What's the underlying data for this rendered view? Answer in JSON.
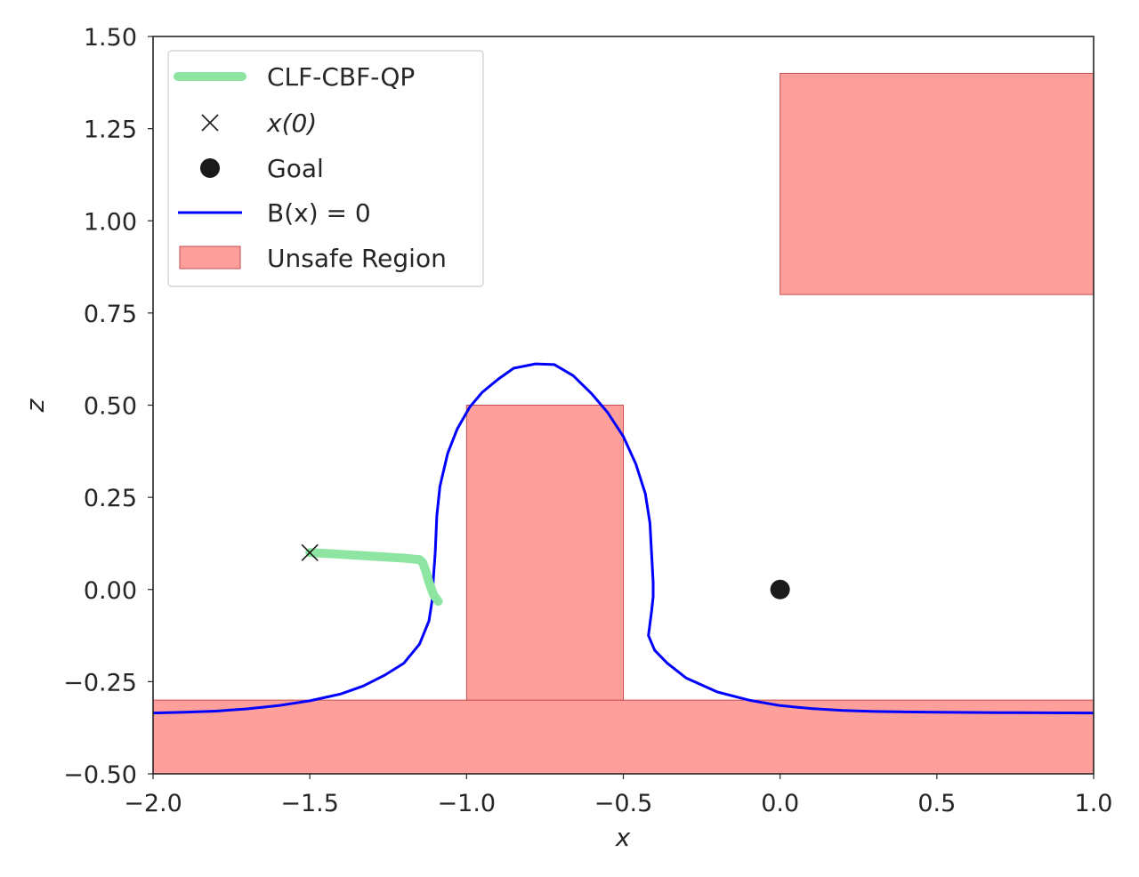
{
  "chart_data": {
    "type": "line",
    "xlabel": "x",
    "ylabel": "z",
    "xlim": [
      -2.0,
      1.0
    ],
    "ylim": [
      -0.5,
      1.5
    ],
    "grid": false,
    "legend_position": "top-left",
    "xticks": [
      -2.0,
      -1.5,
      -1.0,
      -0.5,
      0.0,
      0.5,
      1.0
    ],
    "xtick_labels": [
      "−2.0",
      "−1.5",
      "−1.0",
      "−0.5",
      "0.0",
      "0.5",
      "1.0"
    ],
    "yticks": [
      -0.5,
      -0.25,
      0.0,
      0.25,
      0.5,
      0.75,
      1.0,
      1.25,
      1.5
    ],
    "ytick_labels": [
      "−0.50",
      "−0.25",
      "0.00",
      "0.25",
      "0.50",
      "0.75",
      "1.00",
      "1.25",
      "1.50"
    ],
    "unsafe_regions": [
      {
        "x": [
          -2.0,
          1.0
        ],
        "y": [
          -0.5,
          -0.3
        ]
      },
      {
        "x": [
          -1.0,
          -0.5
        ],
        "y": [
          -0.3,
          0.5
        ]
      },
      {
        "x": [
          0.0,
          1.0
        ],
        "y": [
          0.8,
          1.4
        ]
      }
    ],
    "series": [
      {
        "name": "CLF-CBF-QP",
        "color": "#8de5a1",
        "x": [
          -1.5,
          -1.35,
          -1.2,
          -1.15,
          -1.14,
          -1.13,
          -1.12,
          -1.105,
          -1.09
        ],
        "y": [
          0.1,
          0.093,
          0.085,
          0.081,
          0.073,
          0.05,
          0.02,
          -0.015,
          -0.032
        ]
      },
      {
        "name": "x(0)",
        "marker": "x",
        "color": "#1a1a1a",
        "x": [
          -1.5
        ],
        "y": [
          0.1
        ]
      },
      {
        "name": "Goal",
        "marker": "o",
        "color": "#1a1a1a",
        "x": [
          0.0
        ],
        "y": [
          0.0
        ]
      },
      {
        "name": "B(x) = 0",
        "color": "#0000ff",
        "x": [
          -2.0,
          -1.9,
          -1.8,
          -1.7,
          -1.6,
          -1.5,
          -1.4,
          -1.33,
          -1.26,
          -1.2,
          -1.15,
          -1.12,
          -1.11,
          -1.105,
          -1.1,
          -1.095,
          -1.085,
          -1.06,
          -1.03,
          -0.99,
          -0.95,
          -0.9,
          -0.85,
          -0.78,
          -0.72,
          -0.66,
          -0.6,
          -0.55,
          -0.5,
          -0.46,
          -0.43,
          -0.415,
          -0.41,
          -0.405,
          -0.405,
          -0.41,
          -0.42,
          -0.4,
          -0.36,
          -0.3,
          -0.2,
          -0.1,
          0.0,
          0.1,
          0.2,
          0.3,
          0.5,
          0.7,
          1.0
        ],
        "y": [
          -0.335,
          -0.333,
          -0.33,
          -0.324,
          -0.315,
          -0.302,
          -0.283,
          -0.262,
          -0.232,
          -0.2,
          -0.148,
          -0.085,
          -0.03,
          0.04,
          0.1,
          0.2,
          0.28,
          0.37,
          0.435,
          0.495,
          0.535,
          0.57,
          0.6,
          0.612,
          0.61,
          0.58,
          0.53,
          0.48,
          0.415,
          0.34,
          0.26,
          0.18,
          0.1,
          0.02,
          -0.02,
          -0.06,
          -0.125,
          -0.165,
          -0.2,
          -0.24,
          -0.278,
          -0.3,
          -0.315,
          -0.323,
          -0.328,
          -0.331,
          -0.333,
          -0.334,
          -0.335
        ]
      }
    ],
    "legend": [
      {
        "label": "CLF-CBF-QP",
        "symbol": "thick-line",
        "color": "#8de5a1"
      },
      {
        "label": "x(0)",
        "symbol": "x-marker",
        "color": "#1a1a1a"
      },
      {
        "label": "Goal",
        "symbol": "dot-marker",
        "color": "#1a1a1a"
      },
      {
        "label": "B(x) = 0",
        "symbol": "thin-line",
        "color": "#0000ff"
      },
      {
        "label": "Unsafe Region",
        "symbol": "patch",
        "color": "#ff9f9b"
      }
    ],
    "colors": {
      "unsafe_fill": "#ff9f9b",
      "unsafe_edge": "#c44e52",
      "axes_edge": "#262626"
    }
  }
}
